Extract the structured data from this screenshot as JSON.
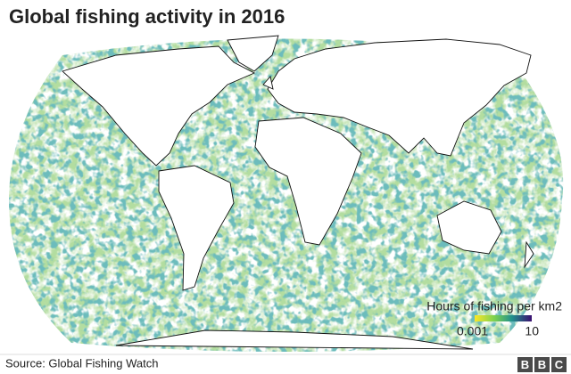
{
  "header": {
    "title": "Global fishing activity in 2016"
  },
  "legend": {
    "title": "Hours of fishing per km2",
    "min": 0.001,
    "max": 10
  },
  "footer": {
    "source": "Source: Global Fishing Watch",
    "logo": [
      "B",
      "B",
      "C"
    ]
  }
}
